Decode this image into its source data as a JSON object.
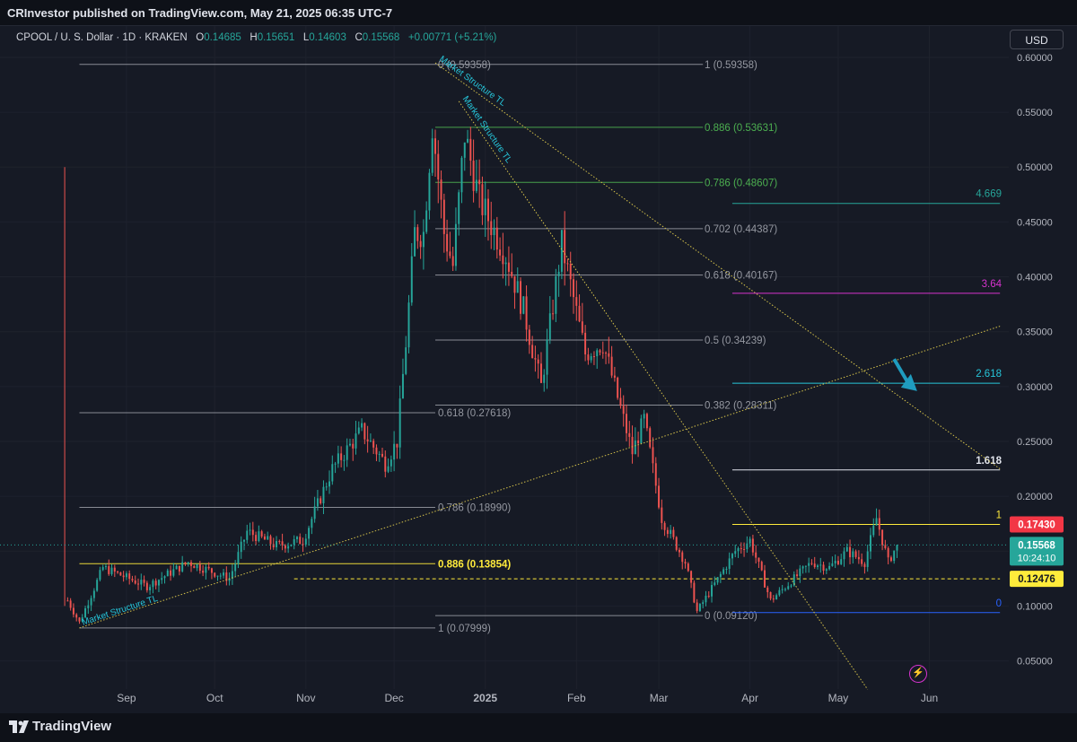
{
  "header": {
    "publisher": "CRInvestor published on TradingView.com, May 21, 2025 06:35 UTC-7",
    "symbol": "CPOOL / U. S. Dollar · 1D · KRAKEN",
    "open_label": "O",
    "open": "0.14685",
    "high_label": "H",
    "high": "0.15651",
    "low_label": "L",
    "low": "0.14603",
    "close_label": "C",
    "close": "0.15568",
    "change": "+0.00771 (+5.21%)",
    "currency": "USD"
  },
  "footer": {
    "brand": "TradingView"
  },
  "colors": {
    "background": "#161a25",
    "up": "#26a69a",
    "down": "#ef5350",
    "grid": "#1e222d",
    "text": "#b2b5be",
    "fib_white": "#9598a1",
    "fib_green": "#4caf50",
    "fib_yellow": "#ffeb3b",
    "teal": "#26c6da",
    "magenta": "#d633ce",
    "arrow": "#1f9cbf"
  },
  "chart_data": {
    "type": "candlestick",
    "symbol": "CPOOL/USD",
    "interval": "1D",
    "price_axis": {
      "ticks": [
        "0.60000",
        "0.55000",
        "0.50000",
        "0.45000",
        "0.40000",
        "0.35000",
        "0.30000",
        "0.25000",
        "0.20000",
        "0.15000",
        "0.10000",
        "0.05000"
      ],
      "values": [
        0.6,
        0.55,
        0.5,
        0.45,
        0.4,
        0.35,
        0.3,
        0.25,
        0.2,
        0.15,
        0.1,
        0.05
      ],
      "range": [
        0.0243,
        0.6294
      ]
    },
    "time_axis": {
      "labels": [
        {
          "label": "Sep",
          "date": "2024-09-01"
        },
        {
          "label": "Oct",
          "date": "2024-10-01"
        },
        {
          "label": "Nov",
          "date": "2024-11-01"
        },
        {
          "label": "Dec",
          "date": "2024-12-01"
        },
        {
          "label": "2025",
          "date": "2025-01-01",
          "bold": true
        },
        {
          "label": "Feb",
          "date": "2025-02-01"
        },
        {
          "label": "Mar",
          "date": "2025-03-01"
        },
        {
          "label": "Apr",
          "date": "2025-04-01"
        },
        {
          "label": "May",
          "date": "2025-05-01"
        },
        {
          "label": "Jun",
          "date": "2025-06-01"
        }
      ],
      "range": [
        "2024-07-20",
        "2025-06-28"
      ]
    },
    "last_price": {
      "value": 0.15568,
      "label": "0.15568",
      "countdown": "10:24:10"
    },
    "price_labels": [
      {
        "value": 0.1743,
        "label": "0.17430",
        "bg": "#f23645",
        "fg": "#ffffff"
      },
      {
        "value": 0.12476,
        "label": "0.12476",
        "bg": "#ffeb3b",
        "fg": "#131722"
      }
    ],
    "keypoints": [
      {
        "date": "2024-08-11",
        "price": 0.5
      },
      {
        "date": "2024-08-12",
        "price": 0.105
      },
      {
        "date": "2024-08-16",
        "price": 0.085
      },
      {
        "date": "2024-08-24",
        "price": 0.135
      },
      {
        "date": "2024-09-08",
        "price": 0.118
      },
      {
        "date": "2024-09-22",
        "price": 0.14
      },
      {
        "date": "2024-10-06",
        "price": 0.125
      },
      {
        "date": "2024-10-12",
        "price": 0.168
      },
      {
        "date": "2024-10-22",
        "price": 0.155
      },
      {
        "date": "2024-10-31",
        "price": 0.16
      },
      {
        "date": "2024-11-10",
        "price": 0.225
      },
      {
        "date": "2024-11-20",
        "price": 0.26
      },
      {
        "date": "2024-11-28",
        "price": 0.23
      },
      {
        "date": "2024-12-02",
        "price": 0.25
      },
      {
        "date": "2024-12-05",
        "price": 0.34
      },
      {
        "date": "2024-12-08",
        "price": 0.44
      },
      {
        "date": "2024-12-11",
        "price": 0.44
      },
      {
        "date": "2024-12-14",
        "price": 0.54
      },
      {
        "date": "2024-12-18",
        "price": 0.44
      },
      {
        "date": "2024-12-21",
        "price": 0.41
      },
      {
        "date": "2024-12-25",
        "price": 0.53
      },
      {
        "date": "2024-12-30",
        "price": 0.47
      },
      {
        "date": "2025-01-08",
        "price": 0.42
      },
      {
        "date": "2025-01-14",
        "price": 0.37
      },
      {
        "date": "2025-01-20",
        "price": 0.3
      },
      {
        "date": "2025-01-27",
        "price": 0.43
      },
      {
        "date": "2025-02-04",
        "price": 0.33
      },
      {
        "date": "2025-02-10",
        "price": 0.34
      },
      {
        "date": "2025-02-20",
        "price": 0.24
      },
      {
        "date": "2025-02-24",
        "price": 0.27
      },
      {
        "date": "2025-03-02",
        "price": 0.18
      },
      {
        "date": "2025-03-10",
        "price": 0.14
      },
      {
        "date": "2025-03-14",
        "price": 0.095
      },
      {
        "date": "2025-03-20",
        "price": 0.12
      },
      {
        "date": "2025-03-27",
        "price": 0.15
      },
      {
        "date": "2025-04-01",
        "price": 0.16
      },
      {
        "date": "2025-04-08",
        "price": 0.105
      },
      {
        "date": "2025-04-14",
        "price": 0.12
      },
      {
        "date": "2025-04-22",
        "price": 0.14
      },
      {
        "date": "2025-04-28",
        "price": 0.135
      },
      {
        "date": "2025-05-04",
        "price": 0.15
      },
      {
        "date": "2025-05-10",
        "price": 0.14
      },
      {
        "date": "2025-05-14",
        "price": 0.18
      },
      {
        "date": "2025-05-18",
        "price": 0.14
      },
      {
        "date": "2025-05-21",
        "price": 0.1557
      }
    ],
    "fib_levels": [
      {
        "price": 0.59358,
        "label": "0 (0.59358)",
        "label2": "1 (0.59358)",
        "color": "#9598a1",
        "start": "2024-08-16",
        "end": "2025-03-16"
      },
      {
        "price": 0.53631,
        "label": "0.886 (0.53631)",
        "color": "#4caf50",
        "start": "2024-12-15",
        "end": "2025-03-16"
      },
      {
        "price": 0.48607,
        "label": "0.786 (0.48607)",
        "color": "#4caf50",
        "start": "2024-12-15",
        "end": "2025-03-16"
      },
      {
        "price": 0.44387,
        "label": "0.702 (0.44387)",
        "color": "#9598a1",
        "start": "2024-12-15",
        "end": "2025-03-16"
      },
      {
        "price": 0.40167,
        "label": "0.618 (0.40167)",
        "color": "#9598a1",
        "start": "2024-12-15",
        "end": "2025-03-16"
      },
      {
        "price": 0.34239,
        "label": "0.5 (0.34239)",
        "color": "#9598a1",
        "start": "2024-12-15",
        "end": "2025-03-16"
      },
      {
        "price": 0.28311,
        "label": "0.382 (0.28311)",
        "color": "#9598a1",
        "start": "2024-12-15",
        "end": "2025-03-16"
      },
      {
        "price": 0.27618,
        "label": "0.618 (0.27618)",
        "color": "#9598a1",
        "start": "2024-08-16",
        "end": "2024-12-15"
      },
      {
        "price": 0.1899,
        "label": "0.786 (0.18990)",
        "color": "#9598a1",
        "start": "2024-08-16",
        "end": "2024-12-15"
      },
      {
        "price": 0.13854,
        "label": "0.886 (0.13854)",
        "color": "#ffeb3b",
        "start": "2024-08-16",
        "end": "2024-12-15",
        "bold": true
      },
      {
        "price": 0.0912,
        "label": "0 (0.09120)",
        "color": "#9598a1",
        "start": "2024-12-15",
        "end": "2025-03-16"
      },
      {
        "price": 0.07999,
        "label": "1 (0.07999)",
        "color": "#9598a1",
        "start": "2024-08-16",
        "end": "2024-12-15"
      }
    ],
    "extension_levels": [
      {
        "price": 0.4669,
        "label": "4.669",
        "color": "#26a69a"
      },
      {
        "price": 0.385,
        "label": "3.64",
        "color": "#d633ce"
      },
      {
        "price": 0.303,
        "label": "2.618",
        "color": "#26c6da"
      },
      {
        "price": 0.224,
        "label": "1.618",
        "color": "#e0e3eb"
      },
      {
        "price": 0.1743,
        "label": "1",
        "color": "#ffeb3b"
      },
      {
        "price": 0.094,
        "label": "0",
        "color": "#2962ff"
      }
    ],
    "extension_start": "2025-03-26",
    "extension_end": "2025-06-25",
    "dashed_level": {
      "price": 0.12476,
      "start": "2024-10-28",
      "end": "2025-06-25"
    },
    "trendlines": [
      {
        "label": "Market Structure TL",
        "points": [
          [
            "2024-08-16",
            0.08
          ],
          [
            "2025-06-25",
            0.355
          ]
        ]
      },
      {
        "label": "Market Structure TL",
        "points": [
          [
            "2024-12-15",
            0.595
          ],
          [
            "2025-06-25",
            0.225
          ]
        ]
      },
      {
        "label": "Market Structure TL",
        "points": [
          [
            "2024-12-23",
            0.56
          ],
          [
            "2025-05-11",
            0.024
          ]
        ]
      }
    ],
    "arrow": {
      "from": [
        "2025-05-20",
        0.325
      ],
      "to": [
        "2025-05-26",
        0.3
      ]
    }
  }
}
